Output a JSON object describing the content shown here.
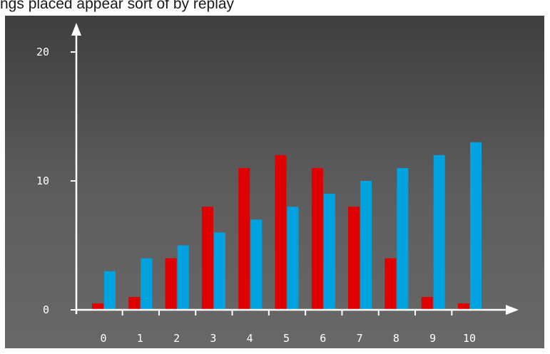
{
  "caption": "ngs placed appear sort of by replay",
  "chart_data": {
    "type": "bar",
    "categories": [
      "0",
      "1",
      "2",
      "3",
      "4",
      "5",
      "6",
      "7",
      "8",
      "9",
      "10"
    ],
    "series": [
      {
        "values": [
          0.5,
          1,
          4,
          8,
          11,
          12,
          11,
          8,
          4,
          1,
          0.5
        ]
      },
      {
        "values": [
          3,
          4,
          5,
          6,
          7,
          8,
          9,
          10,
          11,
          12,
          13
        ]
      }
    ],
    "y_tick_labels": [
      "0",
      "10",
      "20"
    ],
    "y_ticks": [
      0,
      10,
      20
    ],
    "ylim": [
      0,
      20
    ],
    "title": "",
    "xlabel": "",
    "ylabel": "",
    "colors": {
      "series_1": "#e00000",
      "series_2": "#00a3e0",
      "axis": "#ffffff",
      "background": "#555555"
    },
    "grid": false,
    "legend": "none"
  }
}
